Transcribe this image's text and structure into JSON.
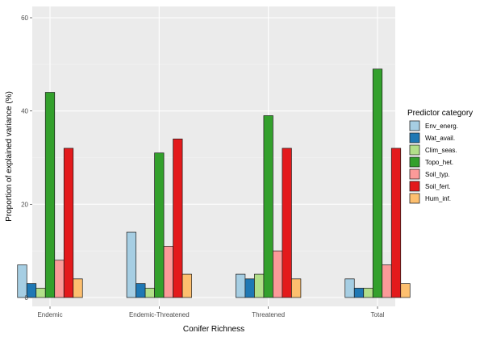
{
  "chart_data": {
    "type": "bar",
    "title": "",
    "xlabel": "Conifer Richness",
    "ylabel": "Proportion of explained variance (%)",
    "ylim": [
      0,
      62
    ],
    "yticks": [
      0,
      20,
      40,
      60
    ],
    "grid": true,
    "legend_position": "right",
    "legend_title": "Predictor category",
    "categories": [
      "Endemic",
      "Endemic-Threatened",
      "Threatened",
      "Total"
    ],
    "series": [
      {
        "name": "Env_energ.",
        "color": "#a6cee3",
        "values": [
          7,
          14,
          5,
          4
        ]
      },
      {
        "name": "Wat_avail.",
        "color": "#1f78b4",
        "values": [
          3,
          3,
          4,
          2
        ]
      },
      {
        "name": "Clim_seas.",
        "color": "#b2df8a",
        "values": [
          2,
          2,
          5,
          2
        ]
      },
      {
        "name": "Topo_het.",
        "color": "#33a02c",
        "values": [
          44,
          31,
          39,
          49
        ]
      },
      {
        "name": "Soil_typ.",
        "color": "#fb9a99",
        "values": [
          8,
          11,
          10,
          7
        ]
      },
      {
        "name": "Soil_fert.",
        "color": "#e31a1c",
        "values": [
          32,
          34,
          32,
          32
        ]
      },
      {
        "name": "Hum_inf.",
        "color": "#fdbf6f",
        "values": [
          4,
          5,
          4,
          3
        ]
      }
    ]
  }
}
